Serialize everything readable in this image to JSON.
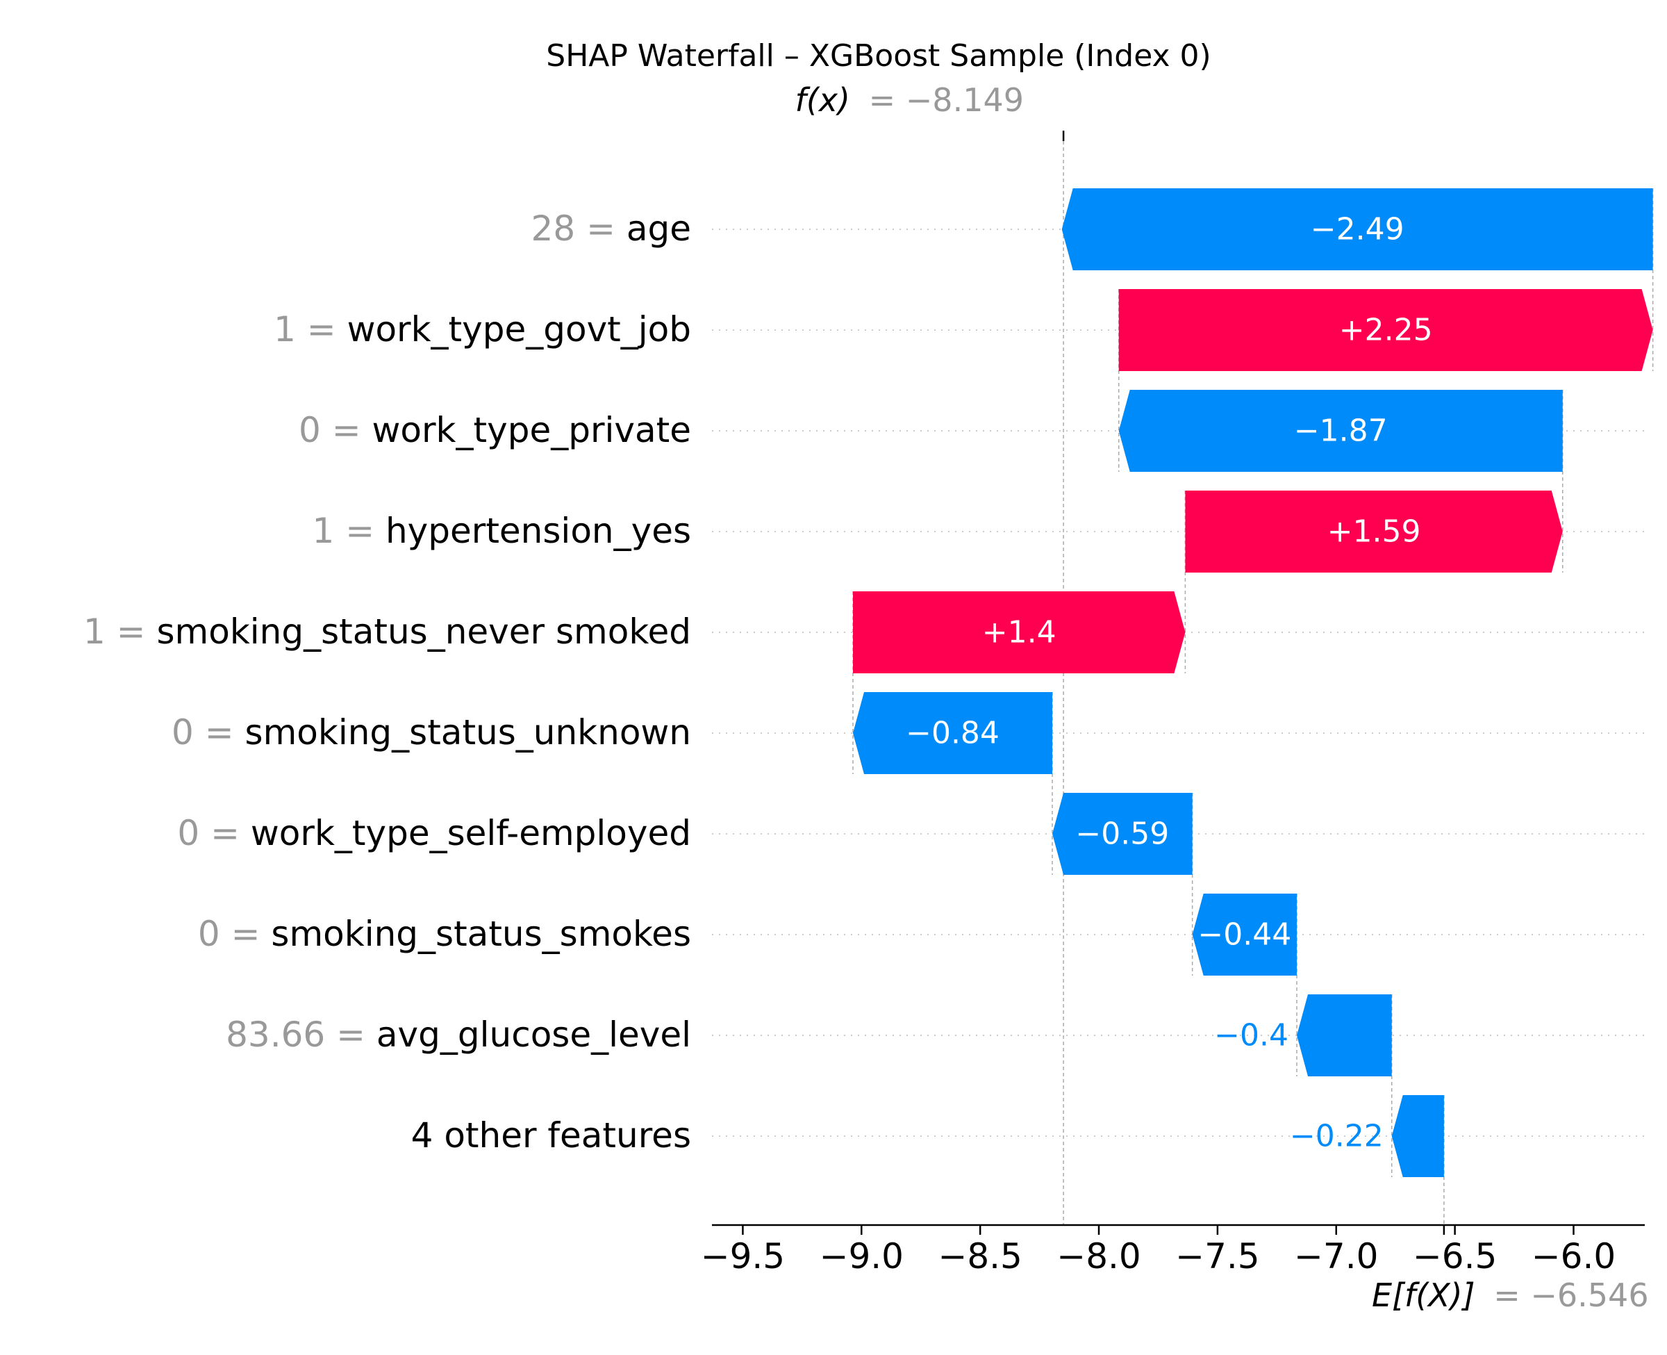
{
  "chart_data": {
    "type": "waterfall",
    "title": "SHAP Waterfall – XGBoost Sample (Index 0)",
    "fx_label": "f(x)",
    "fx_value_text": "= −8.149",
    "fx": -8.149,
    "efx_label": "E[f(X)]",
    "efx_value_text": "= −6.546",
    "base_value": -6.546,
    "xlim": [
      -9.63,
      -5.7
    ],
    "x_ticks": [
      {
        "value": -9.5,
        "label": "−9.5"
      },
      {
        "value": -9.0,
        "label": "−9.0"
      },
      {
        "value": -8.5,
        "label": "−8.5"
      },
      {
        "value": -8.0,
        "label": "−8.0"
      },
      {
        "value": -7.5,
        "label": "−7.5"
      },
      {
        "value": -7.0,
        "label": "−7.0"
      },
      {
        "value": -6.5,
        "label": "−6.5"
      },
      {
        "value": -6.0,
        "label": "−6.0"
      }
    ],
    "colors": {
      "positive": "#ff0051",
      "negative": "#008bfb",
      "value_gray": "#999999"
    },
    "features": [
      {
        "value": "28",
        "name": "age",
        "shap": -2.49,
        "label": "−2.49"
      },
      {
        "value": "1",
        "name": "work_type_govt_job",
        "shap": 2.25,
        "label": "+2.25"
      },
      {
        "value": "0",
        "name": "work_type_private",
        "shap": -1.87,
        "label": "−1.87"
      },
      {
        "value": "1",
        "name": "hypertension_yes",
        "shap": 1.59,
        "label": "+1.59"
      },
      {
        "value": "1",
        "name": "smoking_status_never smoked",
        "shap": 1.4,
        "label": "+1.4"
      },
      {
        "value": "0",
        "name": "smoking_status_unknown",
        "shap": -0.84,
        "label": "−0.84"
      },
      {
        "value": "0",
        "name": "work_type_self-employed",
        "shap": -0.59,
        "label": "−0.59"
      },
      {
        "value": "0",
        "name": "smoking_status_smokes",
        "shap": -0.44,
        "label": "−0.44"
      },
      {
        "value": "83.66",
        "name": "avg_glucose_level",
        "shap": -0.4,
        "label": "−0.4"
      },
      {
        "value": "",
        "name": "4 other features",
        "shap": -0.22,
        "label": "−0.22"
      }
    ]
  }
}
